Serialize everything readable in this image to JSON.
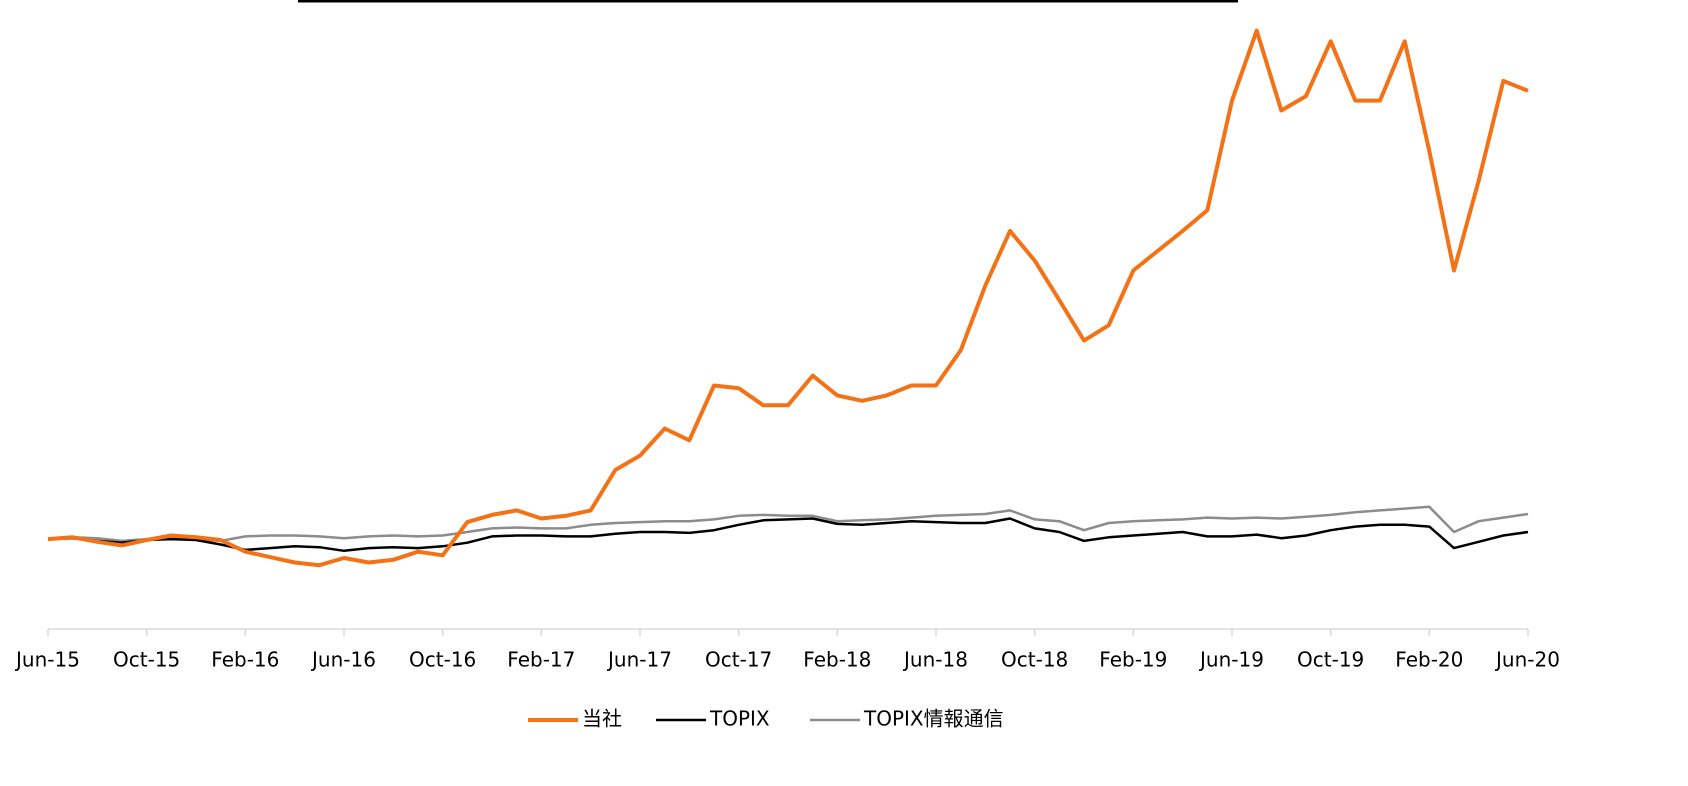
{
  "chart_data": {
    "type": "line",
    "categories": [
      "Jun-15",
      null,
      null,
      null,
      "Oct-15",
      null,
      null,
      null,
      "Feb-16",
      null,
      null,
      null,
      "Jun-16",
      null,
      null,
      null,
      "Oct-16",
      null,
      null,
      null,
      "Feb-17",
      null,
      null,
      null,
      "Jun-17",
      null,
      null,
      null,
      "Oct-17",
      null,
      null,
      null,
      "Feb-18",
      null,
      null,
      null,
      "Jun-18",
      null,
      null,
      null,
      "Oct-18",
      null,
      null,
      null,
      "Feb-19",
      null,
      null,
      null,
      "Jun-19",
      null,
      null,
      null,
      "Oct-19",
      null,
      null,
      null,
      "Feb-20",
      null,
      null,
      null,
      "Jun-20"
    ],
    "series": [
      {
        "name": "当社",
        "color": "#f47216",
        "values": [
          100,
          102,
          97,
          93,
          99,
          104,
          102,
          99,
          86,
          80,
          74,
          71,
          79,
          74,
          77,
          86,
          82,
          119,
          127,
          132,
          123,
          126,
          132,
          177,
          193,
          223,
          210,
          271,
          268,
          249,
          249,
          282,
          260,
          254,
          260,
          271,
          271,
          310,
          382,
          443,
          410,
          366,
          321,
          338,
          399,
          421,
          443,
          466,
          588,
          666,
          577,
          593,
          654,
          588,
          588,
          654,
          532,
          399,
          499,
          610,
          599
        ]
      },
      {
        "name": "TOPIX",
        "color": "#000000",
        "values": [
          100,
          101,
          98,
          96,
          99,
          100,
          99,
          94,
          88,
          90,
          92,
          91,
          87,
          90,
          91,
          90,
          92,
          96,
          103,
          104,
          104,
          103,
          103,
          106,
          108,
          108,
          107,
          110,
          116,
          121,
          122,
          123,
          117,
          116,
          118,
          120,
          119,
          118,
          118,
          123,
          112,
          108,
          98,
          102,
          104,
          106,
          108,
          103,
          103,
          105,
          101,
          104,
          110,
          114,
          116,
          116,
          114,
          90,
          97,
          104,
          108
        ]
      },
      {
        "name": "TOPIX情報通信",
        "color": "#8c8c8c",
        "values": [
          100,
          102,
          101,
          98,
          100,
          101,
          100,
          98,
          103,
          104,
          104,
          103,
          101,
          103,
          104,
          103,
          104,
          108,
          112,
          113,
          112,
          112,
          116,
          118,
          119,
          120,
          120,
          122,
          126,
          127,
          126,
          126,
          120,
          121,
          122,
          124,
          126,
          127,
          128,
          132,
          122,
          120,
          110,
          118,
          120,
          121,
          122,
          124,
          123,
          124,
          123,
          125,
          127,
          130,
          132,
          134,
          136,
          108,
          120,
          124,
          128
        ]
      }
    ],
    "ylim": [
      0,
      700
    ],
    "legend": "bottom"
  }
}
